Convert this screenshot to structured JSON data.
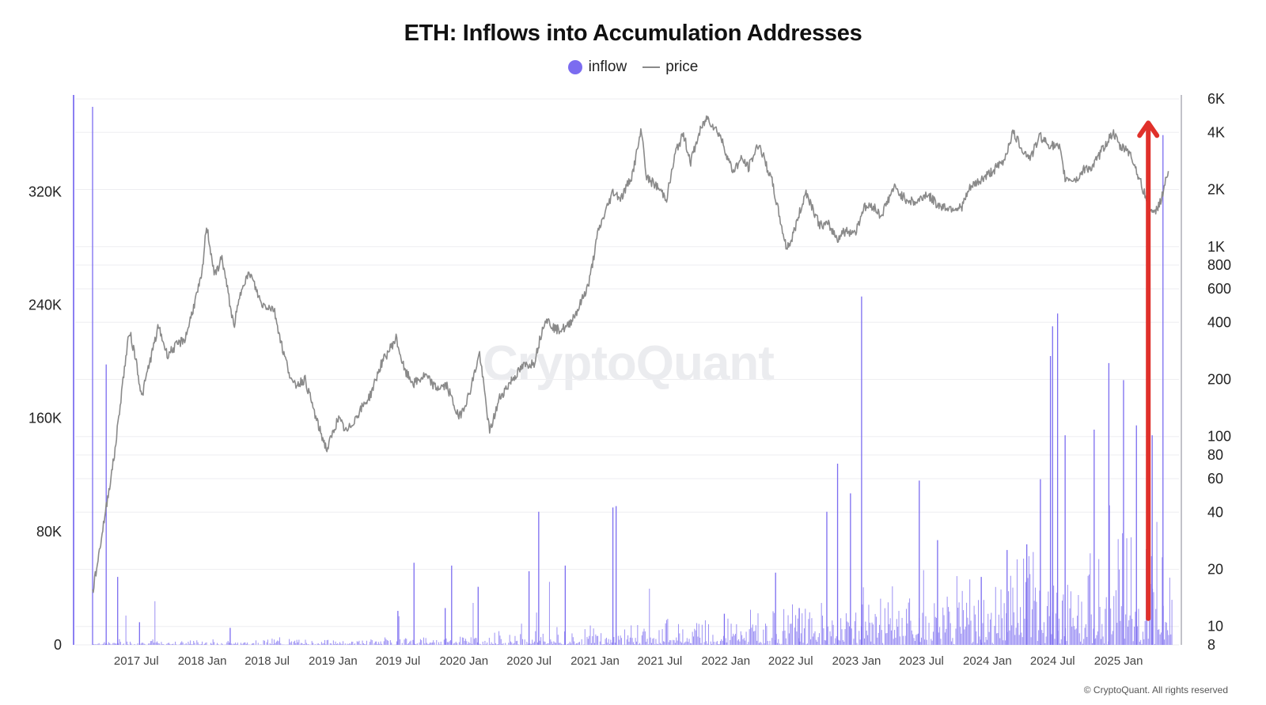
{
  "chart_data": {
    "type": "bar+line",
    "title": "ETH: Inflows into Accumulation Addresses",
    "legend": [
      {
        "name": "inflow",
        "marker": "dot",
        "color": "#7b6cf0"
      },
      {
        "name": "price",
        "marker": "line",
        "color": "#8a8a8a"
      }
    ],
    "legend_position": "top-center",
    "grid": true,
    "x_axis": {
      "type": "date",
      "range": [
        "2017-03-01",
        "2025-06-01"
      ],
      "ticks": [
        {
          "date": "2017-07-01",
          "label": "2017 Jul"
        },
        {
          "date": "2018-01-01",
          "label": "2018 Jan"
        },
        {
          "date": "2018-07-01",
          "label": "2018 Jul"
        },
        {
          "date": "2019-01-01",
          "label": "2019 Jan"
        },
        {
          "date": "2019-07-01",
          "label": "2019 Jul"
        },
        {
          "date": "2020-01-01",
          "label": "2020 Jan"
        },
        {
          "date": "2020-07-01",
          "label": "2020 Jul"
        },
        {
          "date": "2021-01-01",
          "label": "2021 Jan"
        },
        {
          "date": "2021-07-01",
          "label": "2021 Jul"
        },
        {
          "date": "2022-01-01",
          "label": "2022 Jan"
        },
        {
          "date": "2022-07-01",
          "label": "2022 Jul"
        },
        {
          "date": "2023-01-01",
          "label": "2023 Jan"
        },
        {
          "date": "2023-07-01",
          "label": "2023 Jul"
        },
        {
          "date": "2024-01-01",
          "label": "2024 Jan"
        },
        {
          "date": "2024-07-01",
          "label": "2024 Jul"
        },
        {
          "date": "2025-01-01",
          "label": "2025 Jan"
        }
      ]
    },
    "y_left": {
      "series": "inflow",
      "range": [
        0,
        380000
      ],
      "ticks": [
        {
          "value": 0,
          "label": "0"
        },
        {
          "value": 80000,
          "label": "80K"
        },
        {
          "value": 160000,
          "label": "160K"
        },
        {
          "value": 240000,
          "label": "240K"
        },
        {
          "value": 320000,
          "label": "320K"
        }
      ]
    },
    "y_right": {
      "series": "price",
      "scale": "log",
      "range": [
        8,
        6000
      ],
      "ticks": [
        {
          "value": 8,
          "label": "8"
        },
        {
          "value": 10,
          "label": "10"
        },
        {
          "value": 20,
          "label": "20"
        },
        {
          "value": 40,
          "label": "40"
        },
        {
          "value": 60,
          "label": "60"
        },
        {
          "value": 80,
          "label": "80"
        },
        {
          "value": 100,
          "label": "100"
        },
        {
          "value": 200,
          "label": "200"
        },
        {
          "value": 400,
          "label": "400"
        },
        {
          "value": 600,
          "label": "600"
        },
        {
          "value": 800,
          "label": "800"
        },
        {
          "value": 1000,
          "label": "1K"
        },
        {
          "value": 2000,
          "label": "2K"
        },
        {
          "value": 4000,
          "label": "4K"
        },
        {
          "value": 6000,
          "label": "6K"
        }
      ]
    },
    "series": [
      {
        "name": "price",
        "type": "line",
        "color": "#8a8a8a",
        "points": [
          [
            "2017-03-01",
            15
          ],
          [
            "2017-03-20",
            25
          ],
          [
            "2017-04-10",
            45
          ],
          [
            "2017-05-01",
            80
          ],
          [
            "2017-05-25",
            200
          ],
          [
            "2017-06-12",
            360
          ],
          [
            "2017-07-01",
            250
          ],
          [
            "2017-07-16",
            160
          ],
          [
            "2017-08-01",
            220
          ],
          [
            "2017-09-01",
            380
          ],
          [
            "2017-09-25",
            270
          ],
          [
            "2017-10-20",
            300
          ],
          [
            "2017-11-15",
            330
          ],
          [
            "2017-12-10",
            500
          ],
          [
            "2017-12-31",
            700
          ],
          [
            "2018-01-13",
            1300
          ],
          [
            "2018-02-05",
            700
          ],
          [
            "2018-02-25",
            880
          ],
          [
            "2018-03-30",
            380
          ],
          [
            "2018-04-25",
            650
          ],
          [
            "2018-05-15",
            720
          ],
          [
            "2018-06-15",
            500
          ],
          [
            "2018-07-20",
            470
          ],
          [
            "2018-08-15",
            280
          ],
          [
            "2018-09-12",
            185
          ],
          [
            "2018-10-15",
            200
          ],
          [
            "2018-11-20",
            115
          ],
          [
            "2018-12-15",
            85
          ],
          [
            "2019-01-15",
            125
          ],
          [
            "2019-02-08",
            105
          ],
          [
            "2019-03-15",
            135
          ],
          [
            "2019-04-15",
            165
          ],
          [
            "2019-05-15",
            240
          ],
          [
            "2019-06-26",
            330
          ],
          [
            "2019-07-20",
            220
          ],
          [
            "2019-08-15",
            190
          ],
          [
            "2019-09-15",
            210
          ],
          [
            "2019-10-15",
            180
          ],
          [
            "2019-11-15",
            185
          ],
          [
            "2019-12-18",
            125
          ],
          [
            "2020-01-15",
            165
          ],
          [
            "2020-02-14",
            275
          ],
          [
            "2020-03-13",
            105
          ],
          [
            "2020-04-10",
            160
          ],
          [
            "2020-05-15",
            200
          ],
          [
            "2020-06-15",
            235
          ],
          [
            "2020-07-15",
            245
          ],
          [
            "2020-08-15",
            420
          ],
          [
            "2020-09-15",
            365
          ],
          [
            "2020-10-15",
            375
          ],
          [
            "2020-11-15",
            470
          ],
          [
            "2020-12-15",
            640
          ],
          [
            "2021-01-10",
            1200
          ],
          [
            "2021-02-20",
            1950
          ],
          [
            "2021-03-15",
            1800
          ],
          [
            "2021-04-15",
            2400
          ],
          [
            "2021-05-11",
            4150
          ],
          [
            "2021-05-25",
            2300
          ],
          [
            "2021-06-20",
            2100
          ],
          [
            "2021-07-20",
            1800
          ],
          [
            "2021-08-15",
            3200
          ],
          [
            "2021-09-05",
            3900
          ],
          [
            "2021-09-25",
            2800
          ],
          [
            "2021-10-20",
            4000
          ],
          [
            "2021-11-10",
            4800
          ],
          [
            "2021-12-15",
            3900
          ],
          [
            "2022-01-20",
            2500
          ],
          [
            "2022-02-15",
            2900
          ],
          [
            "2022-03-05",
            2600
          ],
          [
            "2022-04-03",
            3500
          ],
          [
            "2022-05-10",
            2200
          ],
          [
            "2022-06-18",
            1000
          ],
          [
            "2022-07-01",
            1050
          ],
          [
            "2022-08-13",
            1950
          ],
          [
            "2022-09-20",
            1300
          ],
          [
            "2022-10-15",
            1300
          ],
          [
            "2022-11-09",
            1100
          ],
          [
            "2022-11-25",
            1200
          ],
          [
            "2022-12-30",
            1200
          ],
          [
            "2023-01-20",
            1600
          ],
          [
            "2023-02-15",
            1650
          ],
          [
            "2023-03-10",
            1450
          ],
          [
            "2023-04-15",
            2050
          ],
          [
            "2023-05-15",
            1800
          ],
          [
            "2023-06-15",
            1700
          ],
          [
            "2023-07-15",
            1900
          ],
          [
            "2023-08-17",
            1650
          ],
          [
            "2023-09-15",
            1600
          ],
          [
            "2023-10-20",
            1600
          ],
          [
            "2023-11-15",
            2050
          ],
          [
            "2023-12-15",
            2250
          ],
          [
            "2024-01-15",
            2500
          ],
          [
            "2024-02-15",
            2800
          ],
          [
            "2024-03-12",
            4000
          ],
          [
            "2024-04-15",
            3100
          ],
          [
            "2024-05-01",
            2950
          ],
          [
            "2024-05-27",
            3850
          ],
          [
            "2024-06-15",
            3500
          ],
          [
            "2024-07-20",
            3300
          ],
          [
            "2024-08-05",
            2300
          ],
          [
            "2024-09-06",
            2250
          ],
          [
            "2024-09-30",
            2600
          ],
          [
            "2024-10-20",
            2600
          ],
          [
            "2024-11-15",
            3200
          ],
          [
            "2024-12-16",
            4000
          ],
          [
            "2025-01-07",
            3300
          ],
          [
            "2025-01-25",
            3300
          ],
          [
            "2025-02-15",
            2700
          ],
          [
            "2025-03-10",
            2000
          ],
          [
            "2025-04-09",
            1450
          ],
          [
            "2025-05-01",
            1800
          ],
          [
            "2025-05-20",
            2500
          ]
        ]
      },
      {
        "name": "inflow",
        "type": "bar",
        "color": "#7b6cf0",
        "spikes": [
          [
            "2017-03-01",
            380000
          ],
          [
            "2017-04-08",
            198000
          ],
          [
            "2017-05-10",
            48000
          ],
          [
            "2017-07-10",
            16000
          ],
          [
            "2018-03-20",
            12000
          ],
          [
            "2019-07-01",
            24000
          ],
          [
            "2019-08-15",
            58000
          ],
          [
            "2019-11-10",
            26000
          ],
          [
            "2019-11-28",
            56000
          ],
          [
            "2020-02-10",
            41000
          ],
          [
            "2020-07-01",
            52000
          ],
          [
            "2020-07-28",
            94000
          ],
          [
            "2020-10-10",
            56000
          ],
          [
            "2021-02-20",
            97000
          ],
          [
            "2021-03-01",
            98000
          ],
          [
            "2021-12-28",
            22000
          ],
          [
            "2022-05-20",
            51000
          ],
          [
            "2022-07-25",
            26000
          ],
          [
            "2022-10-10",
            94000
          ],
          [
            "2022-11-09",
            128000
          ],
          [
            "2022-12-15",
            107000
          ],
          [
            "2023-01-15",
            246000
          ],
          [
            "2023-06-25",
            116000
          ],
          [
            "2023-08-15",
            74000
          ],
          [
            "2023-12-15",
            48000
          ],
          [
            "2024-02-25",
            67000
          ],
          [
            "2024-04-20",
            71000
          ],
          [
            "2024-05-28",
            117000
          ],
          [
            "2024-06-25",
            204000
          ],
          [
            "2024-07-01",
            225000
          ],
          [
            "2024-07-15",
            234000
          ],
          [
            "2024-08-05",
            148000
          ],
          [
            "2024-10-25",
            152000
          ],
          [
            "2024-12-05",
            199000
          ],
          [
            "2025-01-15",
            187000
          ],
          [
            "2025-02-20",
            155000
          ],
          [
            "2025-04-05",
            148000
          ],
          [
            "2025-05-05",
            360000
          ]
        ]
      }
    ],
    "annotations": [
      {
        "type": "arrow",
        "direction": "up",
        "color": "#e0302a",
        "x": "2025-03-25",
        "from_price": 11,
        "to_price": 4400
      }
    ],
    "watermark": "CryptoQuant",
    "footer": "© CryptoQuant. All rights reserved"
  }
}
